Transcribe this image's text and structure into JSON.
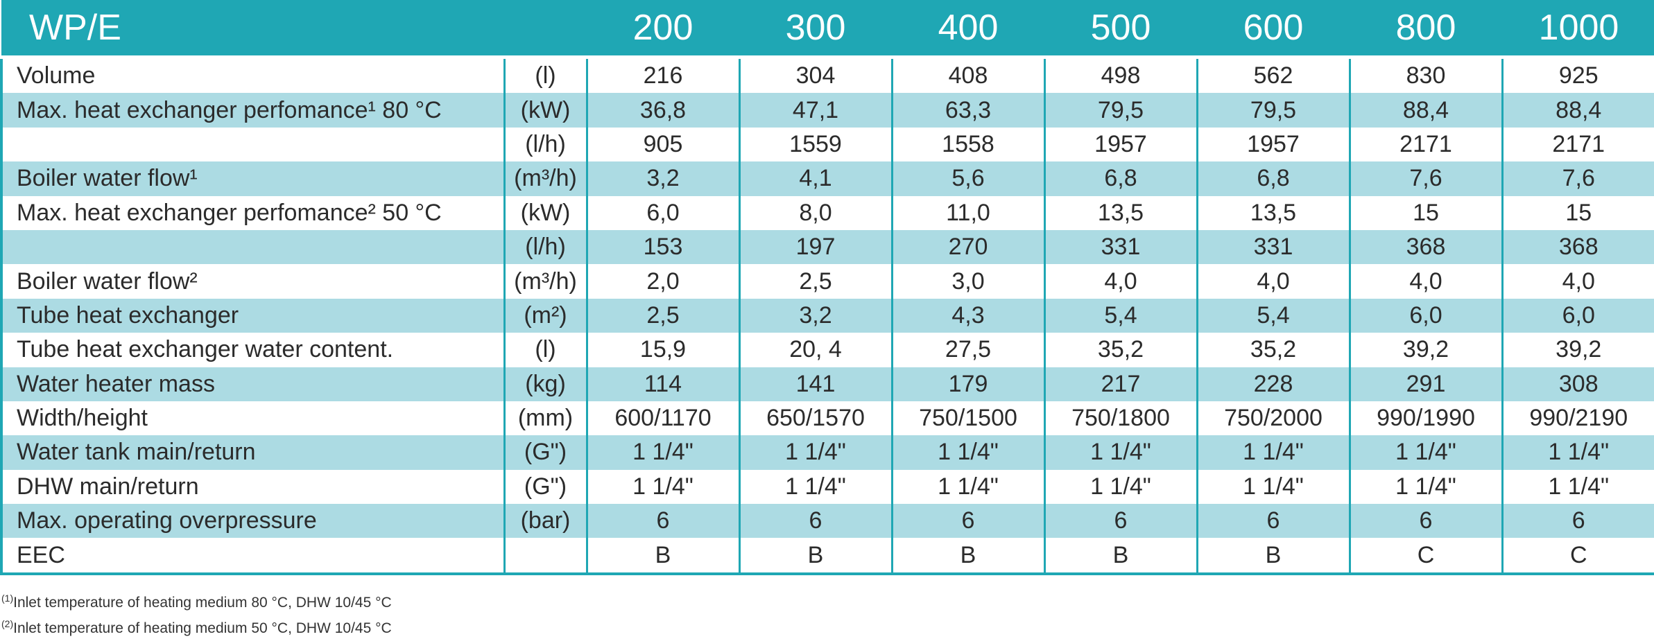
{
  "header": {
    "label": "WP/E",
    "models": [
      "200",
      "300",
      "400",
      "500",
      "600",
      "800",
      "1000"
    ]
  },
  "rows": [
    {
      "name": "Volume",
      "unit": "(l)",
      "values": [
        "216",
        "304",
        "408",
        "498",
        "562",
        "830",
        "925"
      ]
    },
    {
      "name": "Max. heat exchanger perfomance¹  80 °C",
      "unit": "(kW)",
      "values": [
        "36,8",
        "47,1",
        "63,3",
        "79,5",
        "79,5",
        "88,4",
        "88,4"
      ]
    },
    {
      "name": "",
      "unit": "(l/h)",
      "values": [
        "905",
        "1559",
        "1558",
        "1957",
        "1957",
        "2171",
        "2171"
      ]
    },
    {
      "name": "Boiler water flow¹",
      "unit": "(m³/h)",
      "values": [
        "3,2",
        "4,1",
        "5,6",
        "6,8",
        "6,8",
        "7,6",
        "7,6"
      ]
    },
    {
      "name": "Max. heat exchanger perfomance²   50 °C",
      "unit": "(kW)",
      "values": [
        "6,0",
        "8,0",
        "11,0",
        "13,5",
        "13,5",
        "15",
        "15"
      ]
    },
    {
      "name": "",
      "unit": "(l/h)",
      "values": [
        "153",
        "197",
        "270",
        "331",
        "331",
        "368",
        "368"
      ]
    },
    {
      "name": "Boiler water flow²",
      "unit": "(m³/h)",
      "values": [
        "2,0",
        "2,5",
        "3,0",
        "4,0",
        "4,0",
        "4,0",
        "4,0"
      ]
    },
    {
      "name": "Tube heat exchanger",
      "unit": "(m²)",
      "values": [
        "2,5",
        "3,2",
        "4,3",
        "5,4",
        "5,4",
        "6,0",
        "6,0"
      ]
    },
    {
      "name": "Tube heat exchanger water content.",
      "unit": "(l)",
      "values": [
        "15,9",
        "20, 4",
        "27,5",
        "35,2",
        "35,2",
        "39,2",
        "39,2"
      ]
    },
    {
      "name": "Water heater mass",
      "unit": "(kg)",
      "values": [
        "114",
        "141",
        "179",
        "217",
        "228",
        "291",
        "308"
      ]
    },
    {
      "name": "Width/height",
      "unit": "(mm)",
      "values": [
        "600/1170",
        "650/1570",
        "750/1500",
        "750/1800",
        "750/2000",
        "990/1990",
        "990/2190"
      ]
    },
    {
      "name": "Water tank main/return",
      "unit": "(G\")",
      "values": [
        "1 1/4\"",
        "1 1/4\"",
        "1 1/4\"",
        "1 1/4\"",
        "1 1/4\"",
        "1 1/4\"",
        "1 1/4\""
      ]
    },
    {
      "name": "DHW main/return",
      "unit": "(G\")",
      "values": [
        "1 1/4\"",
        "1 1/4\"",
        "1 1/4\"",
        "1 1/4\"",
        "1 1/4\"",
        "1 1/4\"",
        "1 1/4\""
      ]
    },
    {
      "name": "Max. operating overpressure",
      "unit": "(bar)",
      "values": [
        "6",
        "6",
        "6",
        "6",
        "6",
        "6",
        "6"
      ]
    },
    {
      "name": "EEC",
      "unit": "",
      "values": [
        "B",
        "B",
        "B",
        "B",
        "B",
        "C",
        "C"
      ]
    }
  ],
  "footnotes": [
    {
      "mark": "(1)",
      "text": "Inlet temperature of heating medium 80 °C, DHW 10/45 °C"
    },
    {
      "mark": "(2)",
      "text": "Inlet temperature of heating medium 50 °C, DHW 10/45 °C"
    }
  ],
  "colors": {
    "accent": "#1fa7b4",
    "row_alt": "#acdbe3"
  }
}
